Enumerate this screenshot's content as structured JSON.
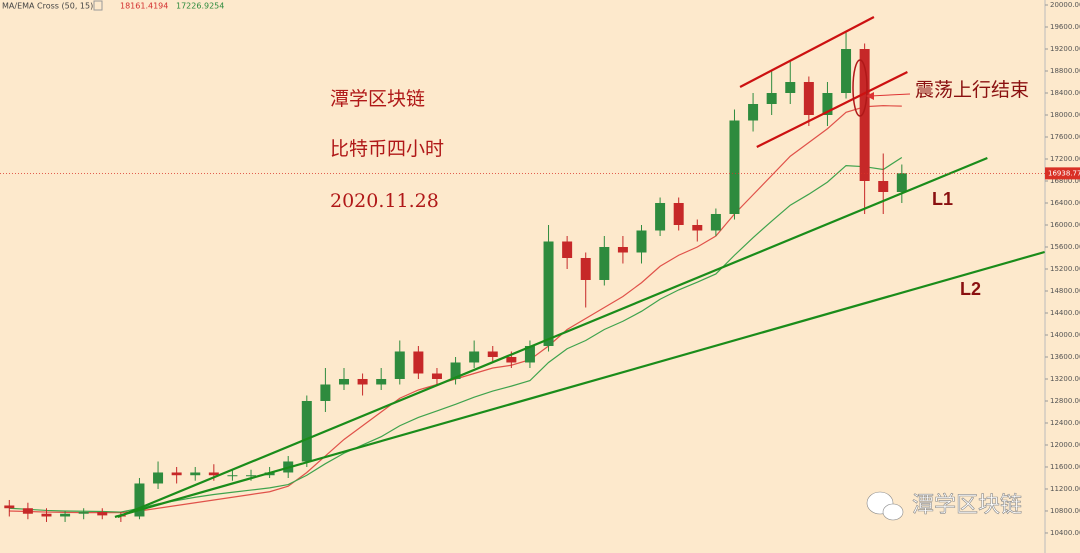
{
  "chart_data": {
    "type": "candlestick",
    "indicator": "MA/EMA Cross (50, 15)",
    "background": "#fde9cc",
    "up_color": "#2e8b3e",
    "down_color": "#c62828",
    "xlim": [
      -0.5,
      55.7
    ],
    "ylim": [
      10036,
      20091
    ],
    "yticks": [
      {
        "value": 10400,
        "label": "10400.00"
      },
      {
        "value": 10800,
        "label": "10800.00"
      },
      {
        "value": 11200,
        "label": "11200.00"
      },
      {
        "value": 11600,
        "label": "11600.00"
      },
      {
        "value": 12000,
        "label": "12000.00"
      },
      {
        "value": 12400,
        "label": "12400.00"
      },
      {
        "value": 12800,
        "label": "12800.00"
      },
      {
        "value": 13200,
        "label": "13200.00"
      },
      {
        "value": 13600,
        "label": "13600.00"
      },
      {
        "value": 14000,
        "label": "14000.00"
      },
      {
        "value": 14400,
        "label": "14400.00"
      },
      {
        "value": 14800,
        "label": "14800.00"
      },
      {
        "value": 15200,
        "label": "15200.00"
      },
      {
        "value": 15600,
        "label": "15600.00"
      },
      {
        "value": 16000,
        "label": "16000.00"
      },
      {
        "value": 16400,
        "label": "16400.00"
      },
      {
        "value": 16800,
        "label": "16800.00"
      },
      {
        "value": 17200,
        "label": "17200.00"
      },
      {
        "value": 17600,
        "label": "17600.00"
      },
      {
        "value": 18000,
        "label": "18000.00"
      },
      {
        "value": 18400,
        "label": "18400.00"
      },
      {
        "value": 18800,
        "label": "18800.00"
      },
      {
        "value": 19200,
        "label": "19200.00"
      },
      {
        "value": 19600,
        "label": "19600.00"
      },
      {
        "value": 20000,
        "label": "20000.00"
      }
    ],
    "last_price": 16938.77,
    "last_price_color": "#d93025",
    "open": [
      10900,
      10850,
      10750,
      10700,
      10750,
      10780,
      10720,
      10700,
      11300,
      11500,
      11450,
      11500,
      11450,
      11450,
      11450,
      11500,
      11700,
      12800,
      13100,
      13200,
      13100,
      13200,
      13700,
      13300,
      13200,
      13500,
      13700,
      13600,
      13500,
      13800,
      15700,
      15400,
      15000,
      15600,
      15500,
      15900,
      16400,
      16000,
      15900,
      16200,
      17900,
      18200,
      18400,
      18600,
      18000,
      18400,
      19200,
      16800,
      16600
    ],
    "high": [
      11000,
      10950,
      10850,
      10800,
      10850,
      10850,
      10780,
      11400,
      11700,
      11600,
      11600,
      11650,
      11550,
      11550,
      11600,
      11800,
      12900,
      13400,
      13400,
      13300,
      13400,
      13900,
      13800,
      13400,
      13600,
      13900,
      13800,
      13700,
      13900,
      16000,
      15800,
      15500,
      15800,
      15800,
      16000,
      16500,
      16500,
      16100,
      16300,
      18100,
      18400,
      18800,
      19000,
      18700,
      18600,
      19500,
      19300,
      17300,
      17100
    ],
    "low": [
      10700,
      10650,
      10600,
      10600,
      10650,
      10650,
      10600,
      10650,
      11200,
      11300,
      11350,
      11350,
      11350,
      11350,
      11400,
      11400,
      11600,
      12600,
      13000,
      12900,
      13000,
      13100,
      13200,
      13100,
      13100,
      13400,
      13500,
      13400,
      13400,
      13700,
      15200,
      14500,
      14900,
      15300,
      15300,
      15800,
      15900,
      15700,
      15800,
      16100,
      17700,
      18000,
      18200,
      17800,
      17800,
      18300,
      16200,
      16200,
      16400
    ],
    "close": [
      10850,
      10750,
      10700,
      10750,
      10780,
      10720,
      10700,
      11300,
      11500,
      11450,
      11500,
      11450,
      11450,
      11450,
      11500,
      11700,
      12800,
      13100,
      13200,
      13100,
      13200,
      13700,
      13300,
      13200,
      13500,
      13700,
      13600,
      13500,
      13800,
      15700,
      15400,
      15000,
      15600,
      15500,
      15900,
      16400,
      16000,
      15900,
      16200,
      17900,
      18200,
      18400,
      18600,
      18000,
      18400,
      19200,
      16800,
      16600,
      16939
    ],
    "series": [
      {
        "color": "#e0524a",
        "values": [
          10800,
          10790,
          10780,
          10775,
          10770,
          10770,
          10770,
          10800,
          10850,
          10900,
          10950,
          11000,
          11050,
          11100,
          11150,
          11250,
          11500,
          11800,
          12100,
          12350,
          12600,
          12850,
          13000,
          13100,
          13200,
          13300,
          13400,
          13450,
          13550,
          13800,
          14100,
          14300,
          14500,
          14700,
          14950,
          15250,
          15450,
          15600,
          15800,
          16200,
          16550,
          16900,
          17250,
          17500,
          17750,
          18050,
          18150,
          18170,
          18161.4194
        ]
      },
      {
        "color": "#3fa34d",
        "values": [
          10850,
          10830,
          10810,
          10800,
          10795,
          10790,
          10780,
          10850,
          10930,
          10990,
          11050,
          11100,
          11140,
          11180,
          11220,
          11280,
          11450,
          11660,
          11850,
          12000,
          12150,
          12350,
          12500,
          12620,
          12740,
          12870,
          12980,
          13070,
          13170,
          13500,
          13750,
          13900,
          14100,
          14250,
          14430,
          14650,
          14820,
          14960,
          15110,
          15450,
          15770,
          16070,
          16360,
          16560,
          16780,
          17080,
          17060,
          17010,
          17226.9254
        ]
      }
    ],
    "trend_lines": [
      {
        "name": "L1",
        "color": "#1a8c1a",
        "x": [
          5.84,
          52.6
        ],
        "y": [
          10691,
          17218
        ]
      },
      {
        "name": "L2",
        "color": "#1a8c1a",
        "x": [
          5.68,
          55.68
        ],
        "y": [
          10691,
          15509
        ]
      },
      {
        "color": "#cc1111",
        "x": [
          39.3,
          46.5
        ],
        "y": [
          18509,
          19782
        ]
      },
      {
        "color": "#cc1111",
        "x": [
          40.2,
          48.3
        ],
        "y": [
          17418,
          18782
        ]
      }
    ],
    "annotations": [
      "潭学区块链",
      "比特币四小时",
      "2020.11.28",
      "震荡上行结束"
    ],
    "watermark": "潭学区块链"
  }
}
